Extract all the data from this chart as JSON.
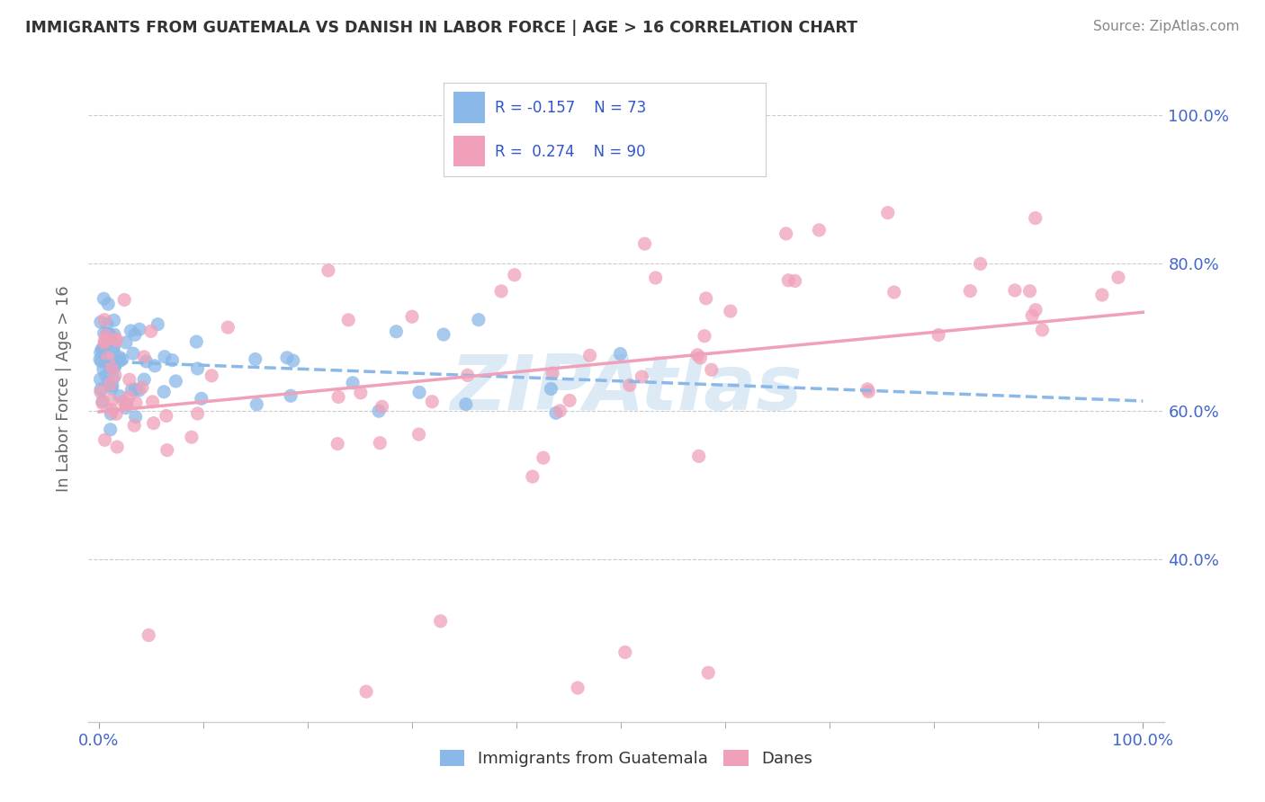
{
  "title": "IMMIGRANTS FROM GUATEMALA VS DANISH IN LABOR FORCE | AGE > 16 CORRELATION CHART",
  "source": "Source: ZipAtlas.com",
  "ylabel": "In Labor Force | Age > 16",
  "xlim": [
    -0.01,
    1.02
  ],
  "ylim": [
    0.18,
    1.08
  ],
  "x_tick_positions": [
    0.0,
    1.0
  ],
  "x_tick_labels": [
    "0.0%",
    "100.0%"
  ],
  "y_tick_positions": [
    0.4,
    0.6,
    0.8,
    1.0
  ],
  "y_tick_labels": [
    "40.0%",
    "60.0%",
    "80.0%",
    "100.0%"
  ],
  "guatemala_color": "#8AB8E8",
  "danes_color": "#F0A0B8",
  "legend_text_color": "#3355CC",
  "tick_label_color": "#4466CC",
  "background_color": "#ffffff",
  "grid_color": "#cccccc",
  "watermark_color": "#C5DCF0",
  "watermark_text": "ZIPAtlas",
  "legend_box_color": "#ffffff",
  "legend_border_color": "#cccccc"
}
